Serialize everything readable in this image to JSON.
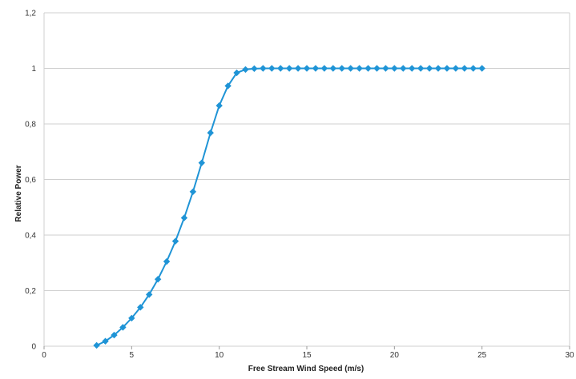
{
  "chart_data": {
    "type": "line",
    "title": "",
    "xlabel": "Free Stream Wind Speed (m/s)",
    "ylabel": "Relative Power",
    "xlim": [
      0,
      30
    ],
    "ylim": [
      0,
      1.2
    ],
    "xticks": [
      0,
      5,
      10,
      15,
      20,
      25,
      30
    ],
    "xtick_labels": [
      "0",
      "5",
      "10",
      "15",
      "20",
      "25",
      "30"
    ],
    "yticks": [
      0,
      0.2,
      0.4,
      0.6,
      0.8,
      1,
      1.2
    ],
    "ytick_labels": [
      "0",
      "0,2",
      "0,4",
      "0,6",
      "0,8",
      "1",
      "1,2"
    ],
    "grid": "horizontal",
    "legend": "none",
    "series": [
      {
        "color": "#1f94d6",
        "marker": "diamond",
        "x": [
          3,
          3.5,
          4,
          4.5,
          5,
          5.5,
          6,
          6.5,
          7,
          7.5,
          8,
          8.5,
          9,
          9.5,
          10,
          10.5,
          11,
          11.5,
          12,
          12.5,
          13,
          13.5,
          14,
          14.5,
          15,
          15.5,
          16,
          16.5,
          17,
          17.5,
          18,
          18.5,
          19,
          19.5,
          20,
          20.5,
          21,
          21.5,
          22,
          22.5,
          23,
          23.5,
          24,
          24.5,
          25
        ],
        "y": [
          0.003,
          0.018,
          0.04,
          0.068,
          0.101,
          0.14,
          0.186,
          0.241,
          0.305,
          0.378,
          0.462,
          0.556,
          0.66,
          0.768,
          0.866,
          0.937,
          0.984,
          0.996,
          0.999,
          1,
          1,
          1,
          1,
          1,
          1,
          1,
          1,
          1,
          1,
          1,
          1,
          1,
          1,
          1,
          1,
          1,
          1,
          1,
          1,
          1,
          1,
          1,
          1,
          1,
          1
        ]
      }
    ]
  }
}
